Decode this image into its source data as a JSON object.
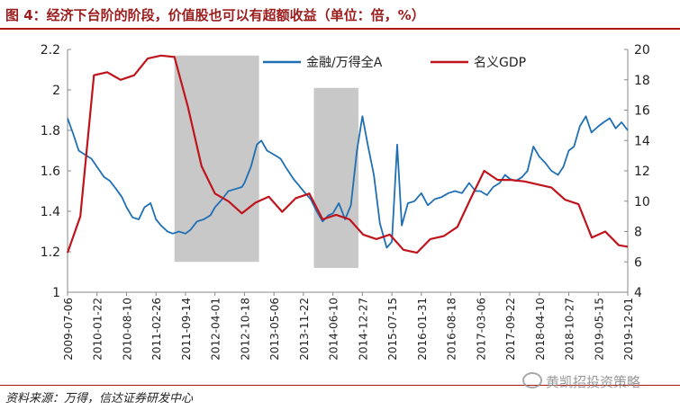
{
  "title": "图 4：经济下台阶的阶段，价值股也可以有超额收益（单位：倍，%）",
  "source": "资料来源：万得，信达证券研发中心",
  "watermark": "黄凯招投资策略",
  "chart_data": {
    "type": "line",
    "series": [
      {
        "name": "金融/万得全A",
        "axis": "left",
        "color": "#1f6fb4",
        "points": [
          [
            "2009-07-06",
            1.86
          ],
          [
            "2009-08-15",
            1.78
          ],
          [
            "2009-09-20",
            1.7
          ],
          [
            "2009-11-01",
            1.68
          ],
          [
            "2009-12-15",
            1.66
          ],
          [
            "2010-01-22",
            1.62
          ],
          [
            "2010-03-10",
            1.57
          ],
          [
            "2010-04-20",
            1.55
          ],
          [
            "2010-06-01",
            1.51
          ],
          [
            "2010-07-10",
            1.47
          ],
          [
            "2010-08-10",
            1.42
          ],
          [
            "2010-09-20",
            1.37
          ],
          [
            "2010-11-01",
            1.36
          ],
          [
            "2010-12-10",
            1.42
          ],
          [
            "2011-01-20",
            1.44
          ],
          [
            "2011-02-26",
            1.36
          ],
          [
            "2011-04-01",
            1.33
          ],
          [
            "2011-05-15",
            1.3
          ],
          [
            "2011-06-20",
            1.29
          ],
          [
            "2011-08-01",
            1.3
          ],
          [
            "2011-09-14",
            1.29
          ],
          [
            "2011-10-20",
            1.31
          ],
          [
            "2011-12-01",
            1.35
          ],
          [
            "2012-01-15",
            1.36
          ],
          [
            "2012-03-01",
            1.38
          ],
          [
            "2012-04-01",
            1.42
          ],
          [
            "2012-05-20",
            1.46
          ],
          [
            "2012-07-01",
            1.5
          ],
          [
            "2012-08-15",
            1.51
          ],
          [
            "2012-10-01",
            1.52
          ],
          [
            "2012-10-18",
            1.54
          ],
          [
            "2012-12-01",
            1.62
          ],
          [
            "2013-01-10",
            1.73
          ],
          [
            "2013-02-10",
            1.75
          ],
          [
            "2013-03-20",
            1.7
          ],
          [
            "2013-05-06",
            1.68
          ],
          [
            "2013-06-20",
            1.66
          ],
          [
            "2013-08-01",
            1.61
          ],
          [
            "2013-09-15",
            1.56
          ],
          [
            "2013-10-20",
            1.53
          ],
          [
            "2013-11-22",
            1.5
          ],
          [
            "2014-01-10",
            1.46
          ],
          [
            "2014-02-20",
            1.4
          ],
          [
            "2014-04-01",
            1.35
          ],
          [
            "2014-05-10",
            1.38
          ],
          [
            "2014-06-10",
            1.39
          ],
          [
            "2014-07-20",
            1.44
          ],
          [
            "2014-09-01",
            1.36
          ],
          [
            "2014-10-10",
            1.43
          ],
          [
            "2014-11-20",
            1.7
          ],
          [
            "2014-12-27",
            1.87
          ],
          [
            "2015-02-01",
            1.73
          ],
          [
            "2015-03-15",
            1.58
          ],
          [
            "2015-04-25",
            1.34
          ],
          [
            "2015-06-10",
            1.22
          ],
          [
            "2015-07-15",
            1.25
          ],
          [
            "2015-08-20",
            1.73
          ],
          [
            "2015-09-20",
            1.33
          ],
          [
            "2015-11-01",
            1.44
          ],
          [
            "2015-12-15",
            1.45
          ],
          [
            "2016-01-31",
            1.49
          ],
          [
            "2016-03-15",
            1.43
          ],
          [
            "2016-05-01",
            1.46
          ],
          [
            "2016-06-15",
            1.47
          ],
          [
            "2016-08-01",
            1.49
          ],
          [
            "2016-09-15",
            1.5
          ],
          [
            "2016-11-01",
            1.49
          ],
          [
            "2016-12-20",
            1.54
          ],
          [
            "2017-02-01",
            1.5
          ],
          [
            "2017-03-06",
            1.5
          ],
          [
            "2017-04-20",
            1.48
          ],
          [
            "2017-06-01",
            1.52
          ],
          [
            "2017-07-15",
            1.54
          ],
          [
            "2017-08-20",
            1.58
          ],
          [
            "2017-09-22",
            1.56
          ],
          [
            "2017-11-01",
            1.55
          ],
          [
            "2017-12-15",
            1.57
          ],
          [
            "2018-01-20",
            1.6
          ],
          [
            "2018-03-01",
            1.72
          ],
          [
            "2018-04-10",
            1.67
          ],
          [
            "2018-05-20",
            1.64
          ],
          [
            "2018-07-01",
            1.6
          ],
          [
            "2018-08-15",
            1.58
          ],
          [
            "2018-09-20",
            1.62
          ],
          [
            "2018-10-27",
            1.7
          ],
          [
            "2018-12-01",
            1.72
          ],
          [
            "2019-01-10",
            1.82
          ],
          [
            "2019-02-20",
            1.87
          ],
          [
            "2019-03-30",
            1.79
          ],
          [
            "2019-05-15",
            1.82
          ],
          [
            "2019-06-20",
            1.84
          ],
          [
            "2019-08-01",
            1.86
          ],
          [
            "2019-09-10",
            1.81
          ],
          [
            "2019-10-20",
            1.84
          ],
          [
            "2019-12-01",
            1.8
          ]
        ]
      },
      {
        "name": "名义GDP",
        "axis": "right",
        "color": "#c0141c",
        "points": [
          [
            "2009-07-06",
            6.6
          ],
          [
            "2009-10-01",
            9.0
          ],
          [
            "2010-01-01",
            18.3
          ],
          [
            "2010-04-01",
            18.5
          ],
          [
            "2010-07-01",
            18.0
          ],
          [
            "2010-10-01",
            18.3
          ],
          [
            "2011-01-01",
            19.4
          ],
          [
            "2011-04-01",
            19.6
          ],
          [
            "2011-07-01",
            19.5
          ],
          [
            "2011-10-01",
            16.2
          ],
          [
            "2012-01-01",
            12.3
          ],
          [
            "2012-04-01",
            10.5
          ],
          [
            "2012-07-01",
            10.0
          ],
          [
            "2012-10-01",
            9.2
          ],
          [
            "2013-01-01",
            9.9
          ],
          [
            "2013-04-01",
            10.3
          ],
          [
            "2013-07-01",
            9.3
          ],
          [
            "2013-10-01",
            10.2
          ],
          [
            "2014-01-01",
            10.5
          ],
          [
            "2014-04-01",
            8.8
          ],
          [
            "2014-07-01",
            9.1
          ],
          [
            "2014-10-01",
            8.8
          ],
          [
            "2015-01-01",
            7.8
          ],
          [
            "2015-04-01",
            7.5
          ],
          [
            "2015-07-01",
            7.8
          ],
          [
            "2015-10-01",
            6.8
          ],
          [
            "2016-01-01",
            6.6
          ],
          [
            "2016-04-01",
            7.5
          ],
          [
            "2016-07-01",
            7.7
          ],
          [
            "2016-10-01",
            8.3
          ],
          [
            "2017-01-01",
            10.2
          ],
          [
            "2017-04-01",
            12.0
          ],
          [
            "2017-07-01",
            11.4
          ],
          [
            "2017-10-01",
            11.4
          ],
          [
            "2018-01-01",
            11.3
          ],
          [
            "2018-04-01",
            11.1
          ],
          [
            "2018-07-01",
            10.9
          ],
          [
            "2018-10-01",
            10.1
          ],
          [
            "2019-01-01",
            9.8
          ],
          [
            "2019-04-01",
            7.6
          ],
          [
            "2019-07-01",
            8.0
          ],
          [
            "2019-10-01",
            7.1
          ],
          [
            "2019-12-01",
            7.0
          ]
        ]
      }
    ],
    "shaded_periods": [
      [
        "2011-07-01",
        "2013-01-25"
      ],
      [
        "2014-02-01",
        "2014-11-30"
      ]
    ],
    "x_ticks": [
      "2009-07-06",
      "2010-01-22",
      "2010-08-10",
      "2011-02-26",
      "2011-09-14",
      "2012-04-01",
      "2012-10-18",
      "2013-05-06",
      "2013-11-22",
      "2014-06-10",
      "2014-12-27",
      "2015-07-15",
      "2016-01-31",
      "2016-08-18",
      "2017-03-06",
      "2017-09-22",
      "2018-04-10",
      "2018-10-27",
      "2019-05-15",
      "2019-12-01"
    ],
    "y_left": {
      "ticks": [
        "1",
        "1.2",
        "1.4",
        "1.6",
        "1.8",
        "2",
        "2.2"
      ],
      "lim": [
        1,
        2.2
      ]
    },
    "y_right": {
      "ticks": [
        "4",
        "6",
        "8",
        "10",
        "12",
        "14",
        "16",
        "18",
        "20"
      ],
      "lim": [
        4,
        20
      ]
    },
    "legend_placement": "top-center",
    "grid": false
  }
}
